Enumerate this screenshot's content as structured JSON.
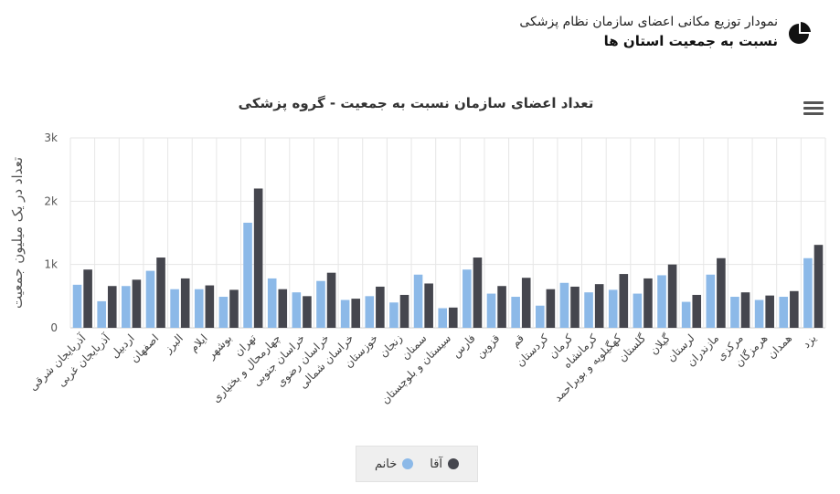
{
  "header": {
    "line1": "نمودار توزیع مکانی اعضای سازمان نظام پزشکی",
    "line2": "نسبت به جمعیت استان ها"
  },
  "colors": {
    "female": "#8cb9e8",
    "male": "#45464e",
    "grid": "#e6e6e6",
    "axis": "#cccccc"
  },
  "chart_data": {
    "type": "bar",
    "title": "تعداد اعضای سازمان نسبت به جمعیت - گروه پزشکی",
    "ylabel": "تعداد در یک میلیون جمعیت",
    "xlabel": "",
    "ylim": [
      0,
      3000
    ],
    "yticks": [
      0,
      1000,
      2000,
      3000
    ],
    "ytick_labels": [
      "0",
      "1k",
      "2k",
      "3k"
    ],
    "legend_position": "bottom",
    "categories": [
      "آذربایجان شرقی",
      "آذربایجان غربی",
      "اردبیل",
      "اصفهان",
      "البرز",
      "ایلام",
      "بوشهر",
      "تهران",
      "چهارمحال و بختیاری",
      "خراسان جنوبی",
      "خراسان رضوی",
      "خراسان شمالی",
      "خوزستان",
      "زنجان",
      "سمنان",
      "سیستان و بلوچستان",
      "فارس",
      "قزوین",
      "قم",
      "کردستان",
      "کرمان",
      "کرمانشاه",
      "کهگیلویه و بویراحمد",
      "گلستان",
      "گیلان",
      "لرستان",
      "مازندران",
      "مرکزی",
      "هرمزگان",
      "همدان",
      "یزد"
    ],
    "series": [
      {
        "name": "خانم",
        "values": [
          680,
          420,
          660,
          900,
          610,
          610,
          490,
          1660,
          780,
          560,
          740,
          440,
          500,
          400,
          840,
          310,
          920,
          540,
          490,
          350,
          710,
          560,
          600,
          540,
          830,
          410,
          840,
          490,
          440,
          490,
          1100
        ]
      },
      {
        "name": "آقا",
        "values": [
          920,
          660,
          760,
          1110,
          780,
          670,
          600,
          2200,
          610,
          500,
          870,
          460,
          650,
          520,
          700,
          320,
          1110,
          660,
          790,
          610,
          650,
          690,
          850,
          780,
          1000,
          520,
          1100,
          560,
          510,
          580,
          1310
        ]
      }
    ]
  }
}
